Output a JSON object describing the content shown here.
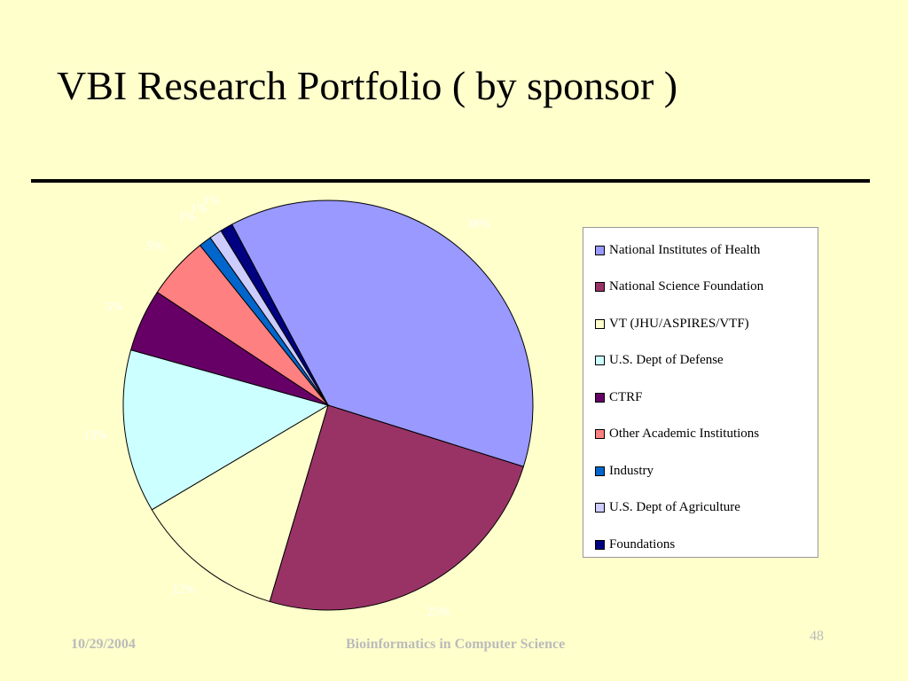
{
  "slide": {
    "title": "VBI Research Portfolio ( by sponsor )",
    "footer_date": "10/29/2004",
    "footer_center": "Bioinformatics in Computer Science",
    "slide_number": "48"
  },
  "chart_data": {
    "type": "pie",
    "title": "",
    "legend_position": "right",
    "slices": [
      {
        "name": "National Institutes of Health",
        "value": 38,
        "label": "38%",
        "color": "#9999ff"
      },
      {
        "name": "National Science Foundation",
        "value": 25,
        "label": "25%",
        "color": "#993366"
      },
      {
        "name": "VT (JHU/ASPIRES/VTF)",
        "value": 12,
        "label": "12%",
        "color": "#ffffcc"
      },
      {
        "name": "U.S. Dept of Defense",
        "value": 13,
        "label": "13%",
        "color": "#ccffff"
      },
      {
        "name": "CTRF",
        "value": 5,
        "label": "5%",
        "color": "#660066"
      },
      {
        "name": "Other Academic Institutions",
        "value": 5,
        "label": "5%",
        "color": "#ff8080"
      },
      {
        "name": "Industry",
        "value": 1,
        "label": "1%",
        "color": "#0066cc"
      },
      {
        "name": "U.S. Dept of Agriculture",
        "value": 1,
        "label": "1%",
        "color": "#ccccff"
      },
      {
        "name": "Foundations",
        "value": 1,
        "label": "1%",
        "color": "#000080"
      }
    ]
  }
}
